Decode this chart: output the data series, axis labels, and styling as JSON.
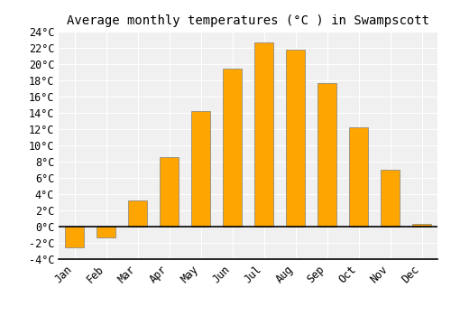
{
  "title": "Average monthly temperatures (°C ) in Swampscott",
  "months": [
    "Jan",
    "Feb",
    "Mar",
    "Apr",
    "May",
    "Jun",
    "Jul",
    "Aug",
    "Sep",
    "Oct",
    "Nov",
    "Dec"
  ],
  "values": [
    -2.5,
    -1.3,
    3.2,
    8.6,
    14.2,
    19.5,
    22.7,
    21.8,
    17.7,
    12.2,
    7.0,
    0.3
  ],
  "bar_color": "#FFA500",
  "bar_edge_color": "#808080",
  "ylim": [
    -4,
    24
  ],
  "yticks": [
    -4,
    -2,
    0,
    2,
    4,
    6,
    8,
    10,
    12,
    14,
    16,
    18,
    20,
    22,
    24
  ],
  "background_color": "#ffffff",
  "plot_bg_color": "#f0f0f0",
  "grid_color": "#ffffff",
  "title_fontsize": 10,
  "tick_fontsize": 8.5
}
